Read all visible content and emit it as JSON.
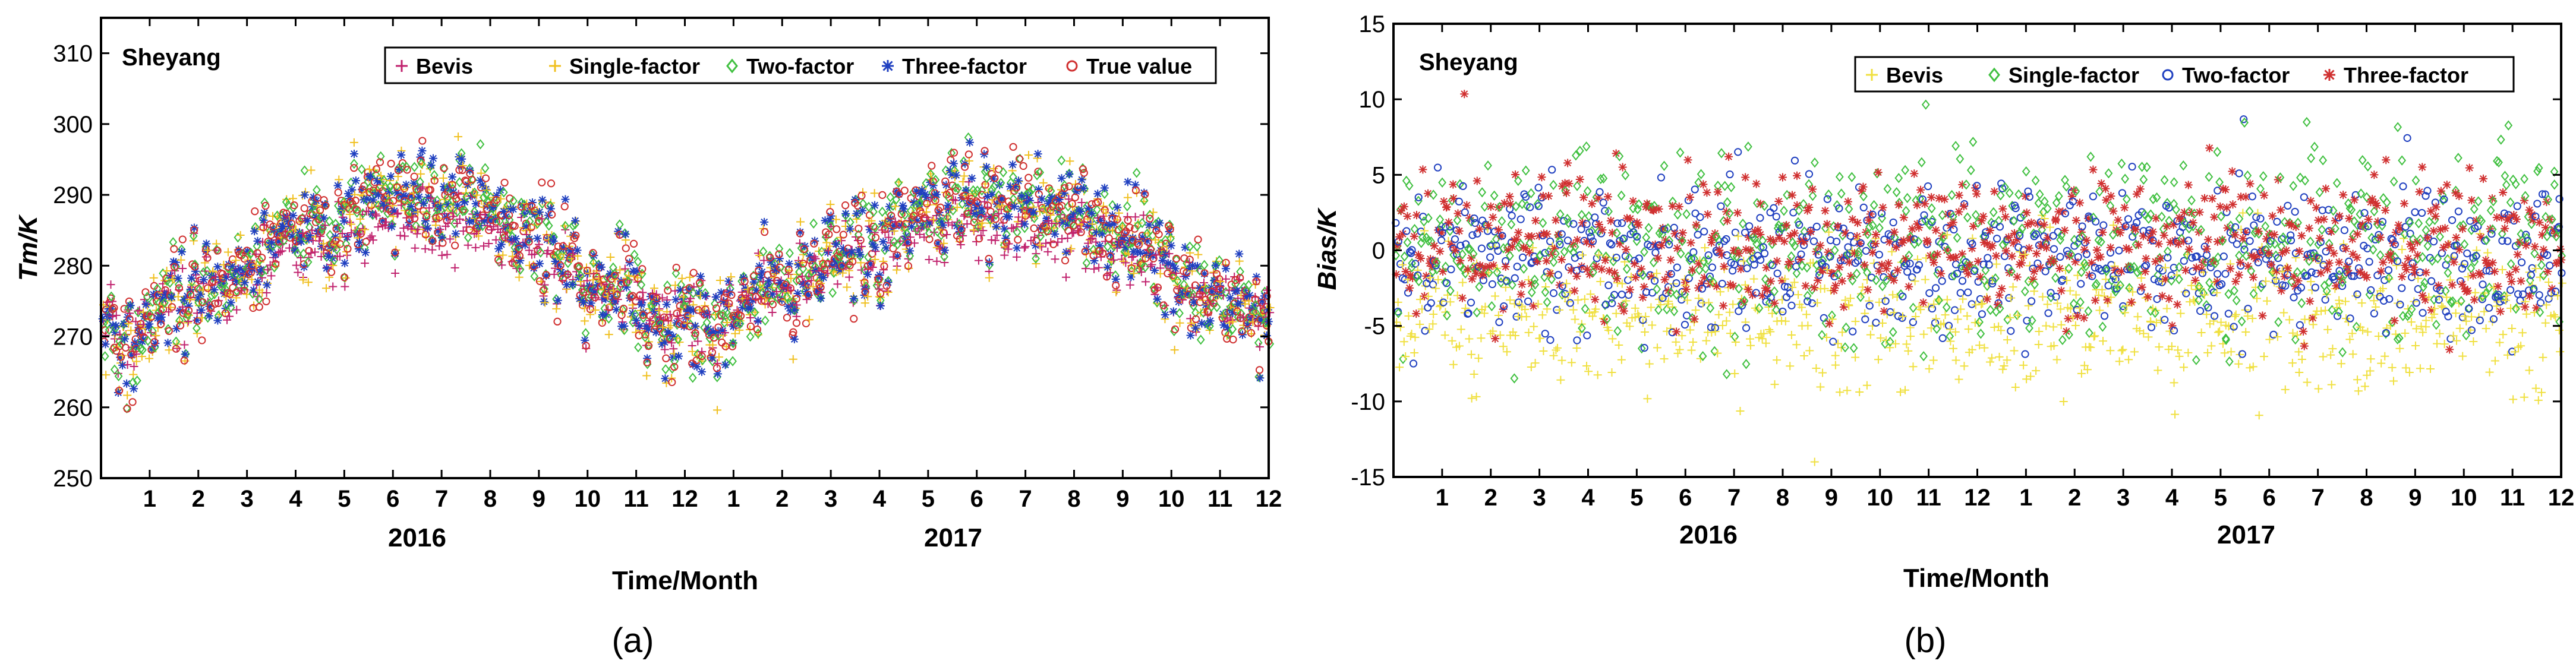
{
  "chart_data": [
    {
      "panel_label": "(a)",
      "type": "scatter",
      "station": "Sheyang",
      "xlabel": "Time/Month",
      "ylabel": "Tm/K",
      "ylim": [
        250,
        315
      ],
      "yticks": [
        250,
        260,
        270,
        280,
        290,
        300,
        310
      ],
      "xlim": [
        0,
        24
      ],
      "month_ticks": [
        "1",
        "2",
        "3",
        "4",
        "5",
        "6",
        "7",
        "8",
        "9",
        "10",
        "11",
        "12",
        "1",
        "2",
        "3",
        "4",
        "5",
        "6",
        "7",
        "8",
        "9",
        "10",
        "11",
        "12"
      ],
      "years": [
        "2016",
        "2017"
      ],
      "legend_position": "top-right",
      "series": [
        {
          "name": "Bevis",
          "marker": "plus",
          "color": "#c0226e"
        },
        {
          "name": "Single-factor",
          "marker": "plus",
          "color": "#f0c020"
        },
        {
          "name": "Two-factor",
          "marker": "diamond",
          "color": "#40c040"
        },
        {
          "name": "Three-factor",
          "marker": "star",
          "color": "#2040c0"
        },
        {
          "name": "True value",
          "marker": "circle",
          "color": "#d03030"
        }
      ],
      "monthly_mean_true": [
        270,
        274,
        278,
        283,
        286,
        289,
        291,
        289,
        286,
        281,
        276,
        272,
        272,
        276,
        280,
        283,
        286,
        289,
        291,
        289,
        286,
        281,
        276,
        272
      ]
    },
    {
      "panel_label": "(b)",
      "type": "scatter",
      "station": "Sheyang",
      "xlabel": "Time/Month",
      "ylabel": "Bias/K",
      "ylim": [
        -15,
        15
      ],
      "yticks": [
        -15,
        -10,
        -5,
        0,
        5,
        10,
        15
      ],
      "xlim": [
        0,
        24
      ],
      "month_ticks": [
        "1",
        "2",
        "3",
        "4",
        "5",
        "6",
        "7",
        "8",
        "9",
        "10",
        "11",
        "12",
        "1",
        "2",
        "3",
        "4",
        "5",
        "6",
        "7",
        "8",
        "9",
        "10",
        "11",
        "12"
      ],
      "years": [
        "2016",
        "2017"
      ],
      "legend_position": "top-right",
      "series": [
        {
          "name": "Bevis",
          "marker": "plus",
          "color": "#f0e040"
        },
        {
          "name": "Single-factor",
          "marker": "diamond",
          "color": "#40c040"
        },
        {
          "name": "Two-factor",
          "marker": "circle",
          "color": "#2040c0"
        },
        {
          "name": "Three-factor",
          "marker": "star",
          "color": "#d03030"
        }
      ],
      "mean_bias": [
        -4.5,
        0.5,
        -0.5,
        0.5
      ]
    }
  ]
}
